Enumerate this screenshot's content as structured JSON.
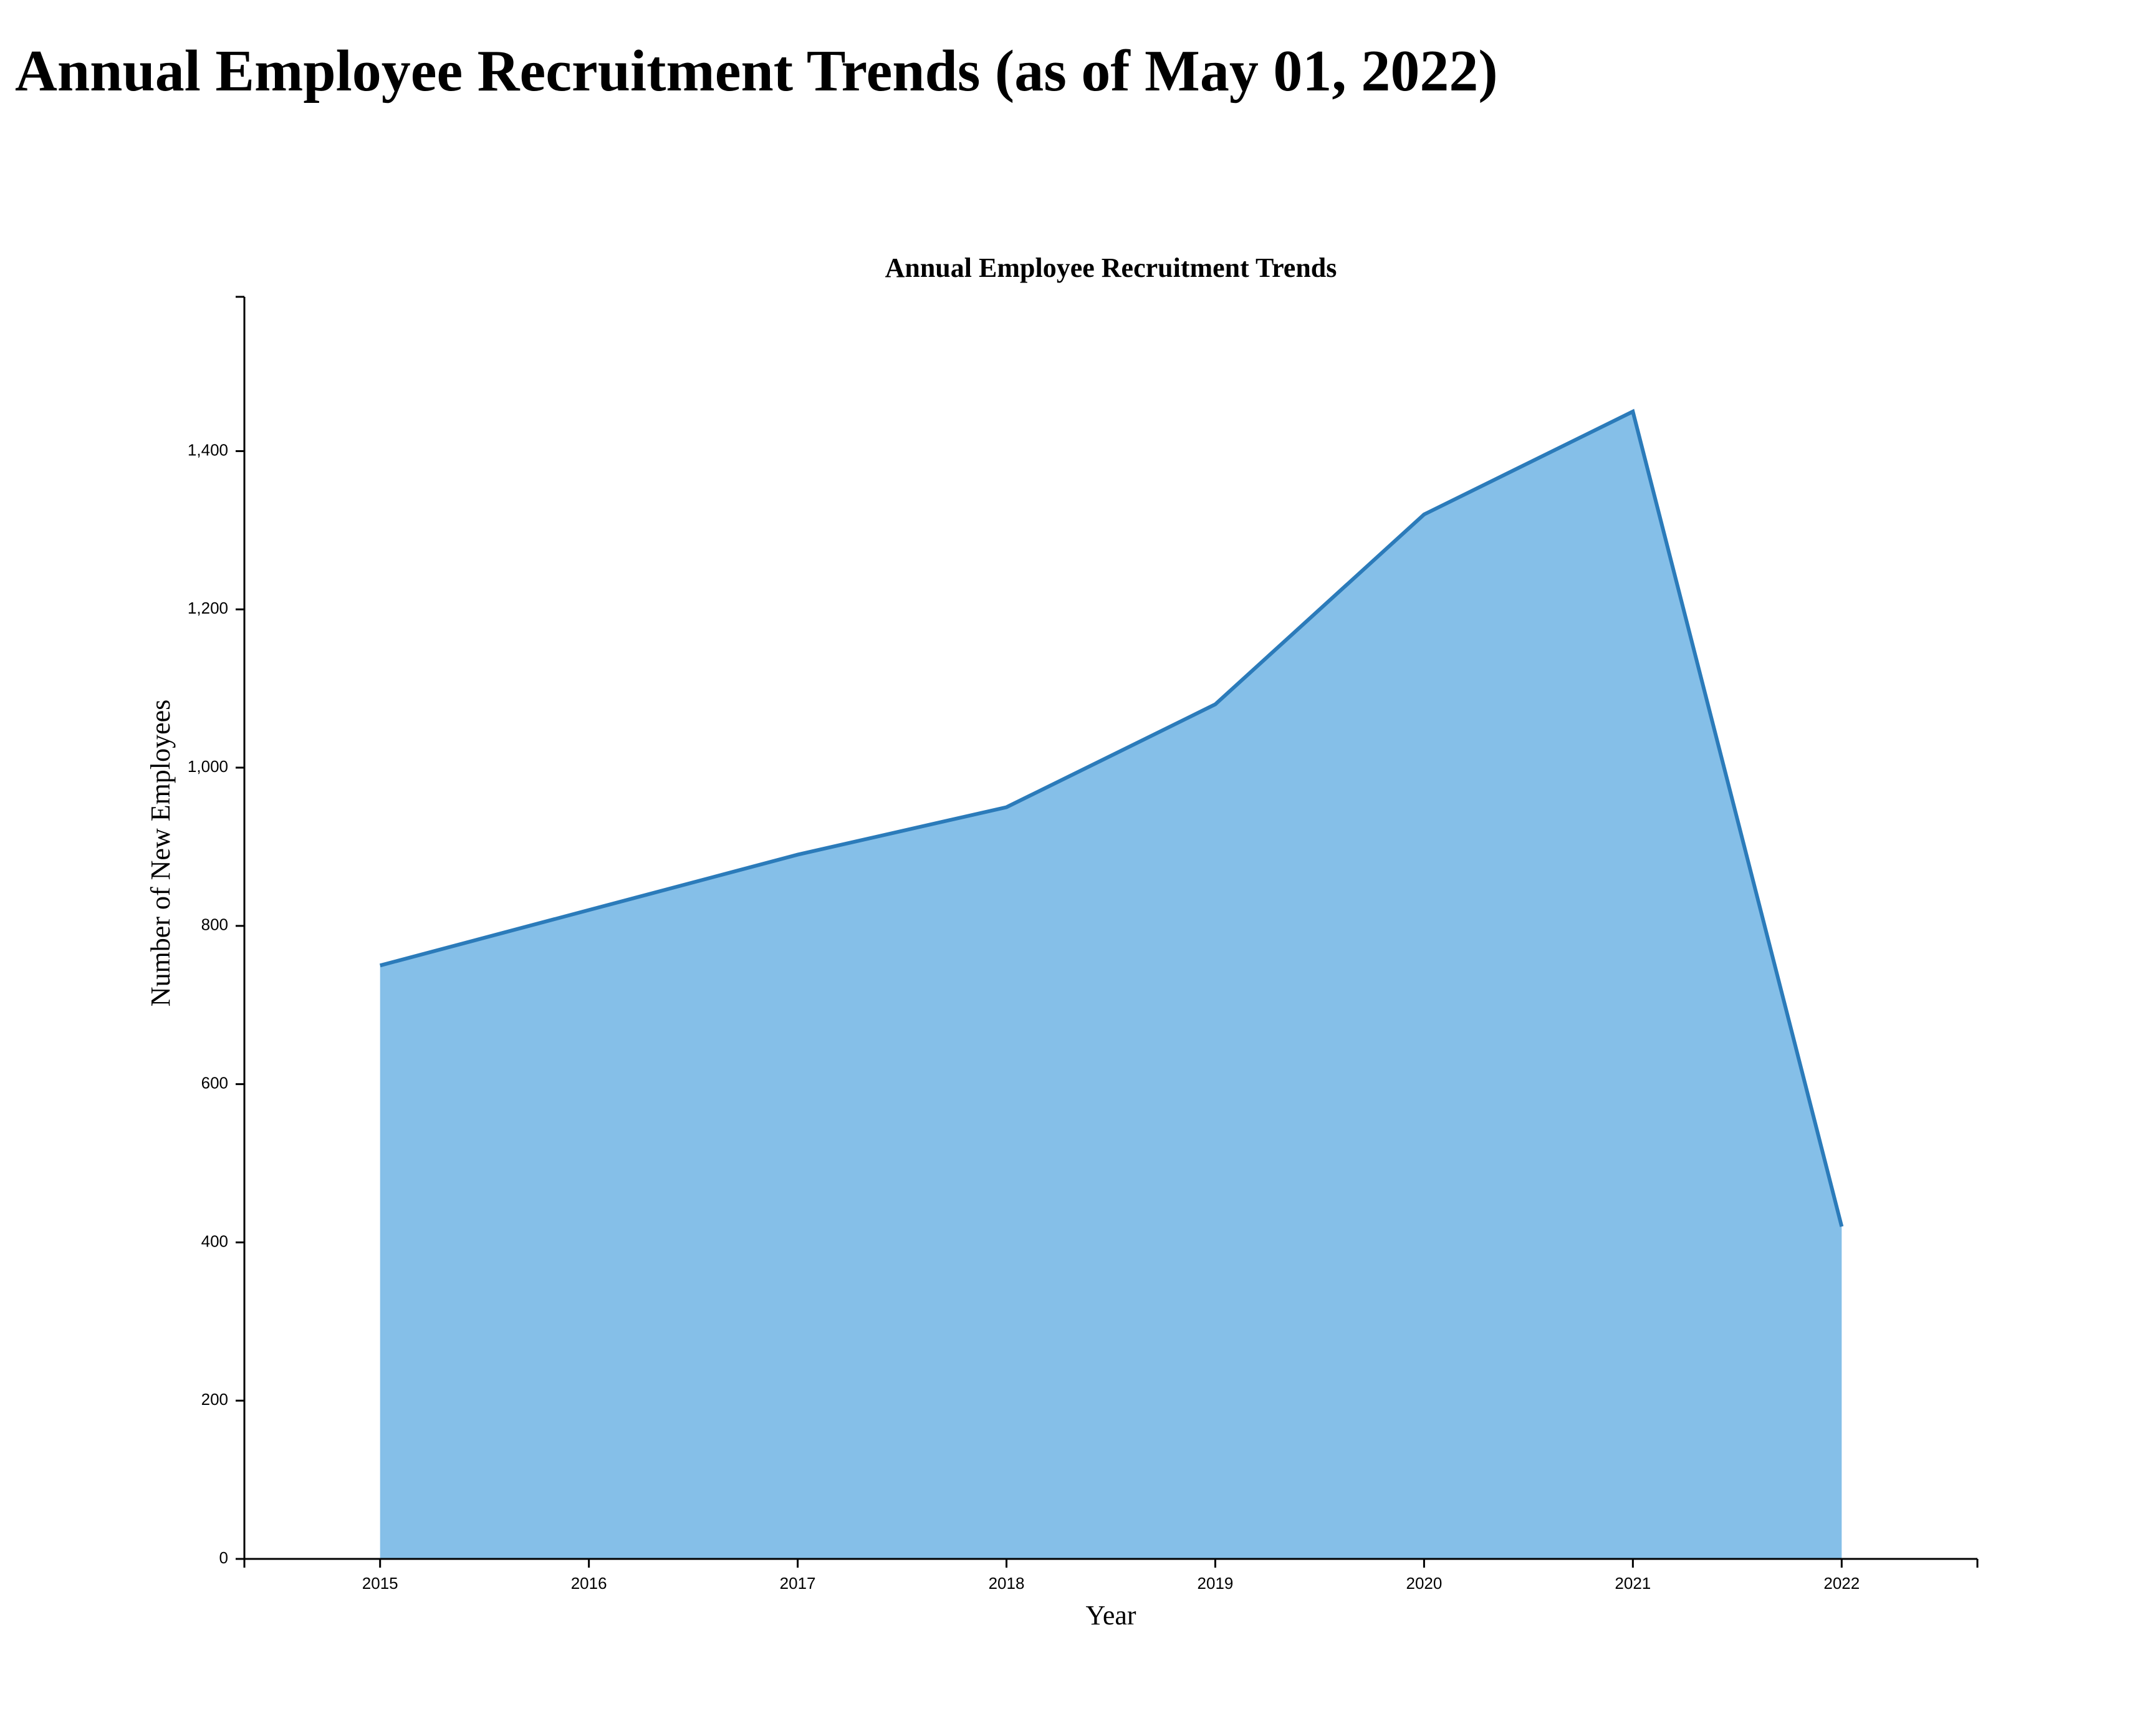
{
  "page": {
    "heading": "Annual Employee Recruitment Trends (as of May 01, 2022)"
  },
  "colors": {
    "area_fill": "#85bfe8",
    "line_stroke": "#2b7bba",
    "axis": "#000000"
  },
  "chart_data": {
    "type": "area",
    "title": "Annual Employee Recruitment Trends",
    "xlabel": "Year",
    "ylabel": "Number of New Employees",
    "x": [
      "2015",
      "2016",
      "2017",
      "2018",
      "2019",
      "2020",
      "2021",
      "2022"
    ],
    "series": [
      {
        "values": [
          750,
          820,
          890,
          950,
          1080,
          1320,
          1450,
          420
        ]
      }
    ],
    "ylim": [
      0,
      1595
    ],
    "x_domain": [
      2014.35,
      2022.65
    ],
    "y_ticks": [
      0,
      200,
      400,
      600,
      800,
      1000,
      1200,
      1400
    ],
    "y_tick_labels": [
      "0",
      "200",
      "400",
      "600",
      "800",
      "1,000",
      "1,200",
      "1,400"
    ],
    "x_tick_labels": [
      "2015",
      "2016",
      "2017",
      "2018",
      "2019",
      "2020",
      "2021",
      "2022"
    ],
    "grid": false,
    "legend": "none"
  }
}
